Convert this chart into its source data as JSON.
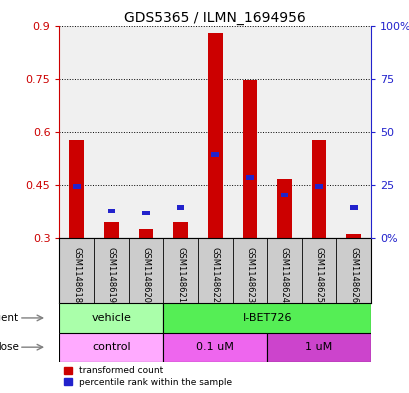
{
  "title": "GDS5365 / ILMN_1694956",
  "samples": [
    "GSM1148618",
    "GSM1148619",
    "GSM1148620",
    "GSM1148621",
    "GSM1148622",
    "GSM1148623",
    "GSM1148624",
    "GSM1148625",
    "GSM1148626"
  ],
  "transformed_count": [
    0.575,
    0.345,
    0.325,
    0.345,
    0.88,
    0.745,
    0.465,
    0.575,
    0.31
  ],
  "percentile_rank": [
    0.445,
    0.375,
    0.37,
    0.385,
    0.535,
    0.47,
    0.42,
    0.445,
    0.385
  ],
  "bar_bottom": 0.3,
  "ylim_left": [
    0.3,
    0.9
  ],
  "ylim_right": [
    0,
    100
  ],
  "yticks_left": [
    0.3,
    0.45,
    0.6,
    0.75,
    0.9
  ],
  "ytick_labels_left": [
    "0.3",
    "0.45",
    "0.6",
    "0.75",
    "0.9"
  ],
  "yticks_right": [
    0,
    25,
    50,
    75,
    100
  ],
  "ytick_labels_right": [
    "0%",
    "25",
    "50",
    "75",
    "100%"
  ],
  "bar_color": "#cc0000",
  "dot_color": "#2222cc",
  "agent_vehicle_label": "vehicle",
  "agent_ibet_label": "I-BET726",
  "dose_control_label": "control",
  "dose_01_label": "0.1 uM",
  "dose_1_label": "1 uM",
  "agent_row_label": "agent",
  "dose_row_label": "dose",
  "legend_red_label": "transformed count",
  "legend_blue_label": "percentile rank within the sample",
  "agent_vehicle_color": "#aaffaa",
  "agent_ibet_color": "#55ee55",
  "dose_control_color": "#ffaaff",
  "dose_01_color": "#ee66ee",
  "dose_1_color": "#cc44cc",
  "sample_label_bg": "#cccccc",
  "bg_color": "#ffffff",
  "plot_bg_color": "#f0f0f0"
}
